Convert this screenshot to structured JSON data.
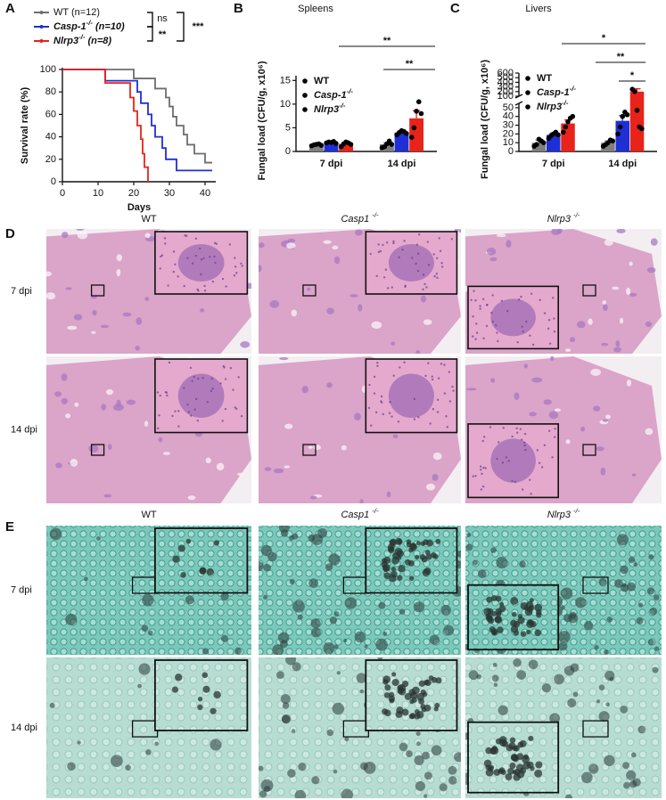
{
  "chart_data": [
    {
      "type": "line",
      "panel": "A",
      "step": true,
      "xlabel": "Days",
      "ylabel": "Survival rate (%)",
      "xlim": [
        0,
        43
      ],
      "xticks": [
        0,
        10,
        20,
        30,
        40
      ],
      "ylim": [
        0,
        100
      ],
      "yticks": [
        0,
        20,
        40,
        60,
        80,
        100
      ],
      "series": [
        {
          "name": "WT (n=12)",
          "color": "#6e6e6e",
          "x": [
            0,
            20,
            26,
            29,
            30,
            31,
            32,
            34,
            35,
            37,
            40,
            42
          ],
          "values": [
            100,
            92,
            83,
            75,
            67,
            58,
            50,
            42,
            33,
            25,
            17,
            17
          ]
        },
        {
          "name": "Casp-1-/- (n=10)",
          "color": "#1f2fd6",
          "x": [
            0,
            12,
            21,
            22,
            24,
            25,
            26,
            28,
            29,
            32,
            42
          ],
          "values": [
            100,
            90,
            80,
            70,
            60,
            50,
            40,
            30,
            20,
            10,
            10
          ]
        },
        {
          "name": "Nlrp3-/- (n=8)",
          "color": "#e8231a",
          "x": [
            0,
            12,
            19,
            20,
            21,
            22,
            22.5,
            23,
            24
          ],
          "values": [
            100,
            88,
            75,
            63,
            50,
            38,
            25,
            13,
            0
          ]
        }
      ],
      "annotations": [
        "ns",
        "**",
        "***"
      ]
    },
    {
      "type": "bar",
      "panel": "B",
      "title": "Spleens",
      "ylabel": "Fungal load (CFU/g, x10⁶)",
      "categories": [
        "7 dpi",
        "14 dpi"
      ],
      "ylim": [
        0,
        16
      ],
      "yticks": [
        0,
        5,
        10,
        15
      ],
      "series": [
        {
          "name": "WT",
          "color": "#7f7f7f",
          "values": [
            1.4,
            1.5
          ],
          "errors": [
            0.1,
            0.3
          ],
          "points": [
            [
              1.2,
              1.4,
              1.5,
              1.6,
              1.3
            ],
            [
              0.8,
              1.0,
              1.6,
              2.2,
              1.5
            ]
          ]
        },
        {
          "name": "Casp-1-/-",
          "color": "#1f2fd6",
          "values": [
            1.9,
            4.0
          ],
          "errors": [
            0.1,
            0.3
          ],
          "points": [
            [
              1.8,
              2.0,
              1.9,
              2.1,
              1.7
            ],
            [
              3.5,
              4.0,
              4.4,
              4.2,
              3.8
            ]
          ]
        },
        {
          "name": "Nlrp3-/-",
          "color": "#e8231a",
          "values": [
            1.6,
            7.0
          ],
          "errors": [
            0.3,
            1.6
          ],
          "points": [
            [
              1.0,
              1.6,
              2.0,
              1.8,
              1.5
            ],
            [
              3.0,
              5.0,
              8.5,
              10.5,
              8.0
            ]
          ]
        }
      ],
      "annotations": [
        "**",
        "**"
      ]
    },
    {
      "type": "bar",
      "panel": "C",
      "title": "Livers",
      "ylabel": "Fungal load (CFU/g, x10⁶)",
      "categories": [
        "7 dpi",
        "14 dpi"
      ],
      "ylim": [
        0,
        600
      ],
      "ybreak": [
        55,
        100
      ],
      "yticks": [
        0,
        10,
        20,
        30,
        40,
        50,
        100,
        200,
        300,
        400,
        500,
        600
      ],
      "series": [
        {
          "name": "WT",
          "color": "#7f7f7f",
          "values": [
            10,
            10
          ],
          "errors": [
            3,
            2
          ],
          "points": [
            [
              6,
              8,
              14,
              12,
              10
            ],
            [
              6,
              8,
              10,
              13,
              12
            ]
          ]
        },
        {
          "name": "Casp-1-/-",
          "color": "#1f2fd6",
          "values": [
            19,
            35
          ],
          "errors": [
            2,
            6
          ],
          "points": [
            [
              15,
              18,
              20,
              22,
              19
            ],
            [
              20,
              28,
              40,
              45,
              42
            ]
          ]
        },
        {
          "name": "Nlrp3-/-",
          "color": "#e8231a",
          "values": [
            32,
            200
          ],
          "errors": [
            4,
            60
          ],
          "points": [
            [
              22,
              28,
              34,
              38,
              40
            ],
            [
              250,
              200,
              47,
              28,
              26
            ]
          ]
        }
      ],
      "annotations": [
        "*",
        "**",
        "*"
      ]
    }
  ],
  "figure_panels": [
    {
      "label": "D",
      "columns": [
        "WT",
        "Casp1 -/-",
        "Nlrp3 -/-"
      ],
      "rows": [
        "7 dpi",
        "14 dpi"
      ]
    },
    {
      "label": "E",
      "columns": [
        "WT",
        "Casp1 -/-",
        "Nlrp3 -/-"
      ],
      "rows": [
        "7 dpi",
        "14 dpi"
      ]
    }
  ]
}
